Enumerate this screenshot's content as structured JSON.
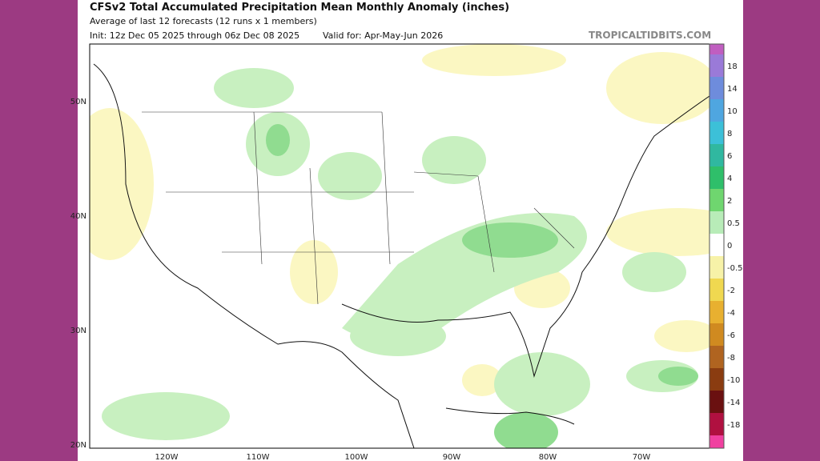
{
  "header": {
    "title": "CFSv2 Total Accumulated Precipitation Mean Monthly Anomaly (inches)",
    "subtitle": "Average of last 12 forecasts (12 runs x 1 members)",
    "init": "Init: 12z Dec 05 2025 through 06z Dec 08 2025",
    "valid": "Valid for: Apr-May-Jun 2026",
    "watermark": "TROPICALTIDBITS.COM"
  },
  "colorbar": {
    "labels": [
      "18",
      "14",
      "10",
      "8",
      "6",
      "4",
      "2",
      "0.5",
      "0",
      "-0.5",
      "-2",
      "-4",
      "-6",
      "-8",
      "-10",
      "-14",
      "-18"
    ]
  },
  "map": {
    "longitude_labels": [
      "120W",
      "110W",
      "100W",
      "90W",
      "80W",
      "70W"
    ],
    "latitude_labels": [
      "50N",
      "40N",
      "30N",
      "20N"
    ]
  }
}
